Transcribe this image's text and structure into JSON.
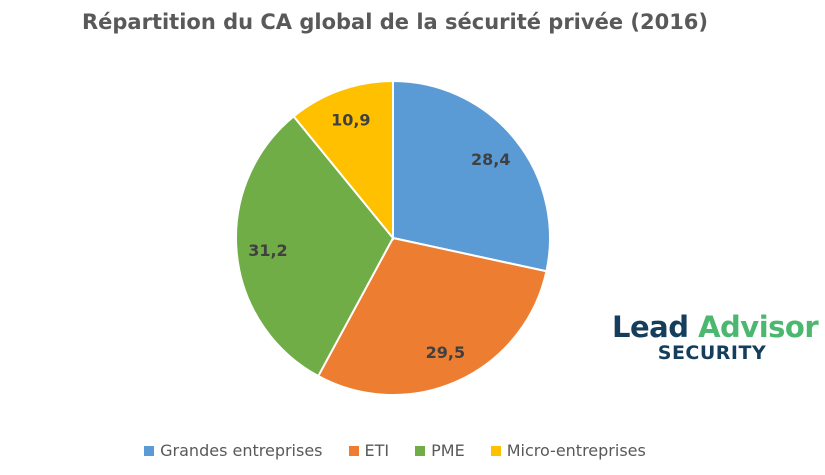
{
  "chart_data": {
    "type": "pie",
    "title": "Répartition du CA global de la sécurité privée (2016)",
    "categories": [
      "Grandes entreprises",
      "ETI",
      "PME",
      "Micro-entreprises"
    ],
    "values": [
      28.4,
      29.5,
      31.2,
      10.9
    ],
    "data_labels": [
      "28,4",
      "29,5",
      "31,2",
      "10,9"
    ],
    "colors": [
      "#5b9bd5",
      "#ed7d31",
      "#70ad47",
      "#ffc000"
    ],
    "start_angle": "top",
    "direction": "clockwise",
    "legend_position": "bottom"
  },
  "logo": {
    "line1_a": "Lead",
    "line1_b": "Advisor",
    "line2": "SECURITY"
  }
}
